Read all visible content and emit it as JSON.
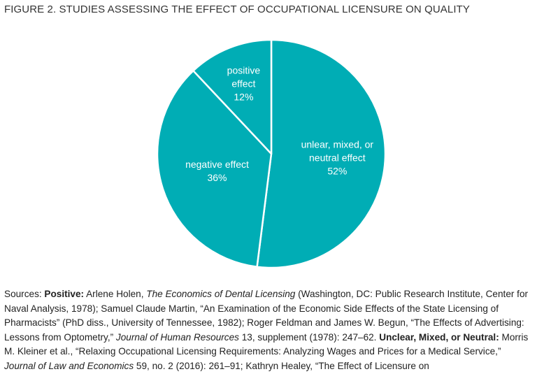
{
  "chart_data": {
    "type": "pie",
    "title": "FIGURE 2. STUDIES ASSESSING THE EFFECT OF OCCUPATIONAL LICENSURE ON QUALITY",
    "categories": [
      "unlear, mixed, or neutral effect",
      "negative effect",
      "positive effect"
    ],
    "values": [
      52,
      36,
      12
    ],
    "value_labels": [
      "52%",
      "36%",
      "12%"
    ],
    "color": "#00adb5"
  },
  "sources": [
    {
      "text": "Sources: ",
      "style": "normal"
    },
    {
      "text": "Positive:",
      "style": "bold"
    },
    {
      "text": " Arlene Holen, ",
      "style": "normal"
    },
    {
      "text": "The Economics of Dental Licensing",
      "style": "italic"
    },
    {
      "text": " (Washington, DC: Public Research Institute, Center for Naval Analysis, 1978); Samuel Claude Martin, “An Examination of the Economic Side Effects of the State Licensing of Pharmacists” (PhD diss., University of Tennessee, 1982); Roger Feldman and James W. Begun, “The Effects of Advertising: Lessons from Optometry,” ",
      "style": "normal"
    },
    {
      "text": "Journal of Human Resources",
      "style": "italic"
    },
    {
      "text": " 13, supplement (1978): 247–62. ",
      "style": "normal"
    },
    {
      "text": "Unclear, Mixed, or Neutral:",
      "style": "bold"
    },
    {
      "text": " Morris M. Kleiner et al., “Relaxing Occupational Licensing Requirements: Analyzing Wages and Prices for a Medical Service,” ",
      "style": "normal"
    },
    {
      "text": "Journal of Law and Economics",
      "style": "italic"
    },
    {
      "text": " 59, no. 2 (2016): 261–91; Kathryn Healey, “The Effect of Licensure on",
      "style": "normal"
    }
  ]
}
